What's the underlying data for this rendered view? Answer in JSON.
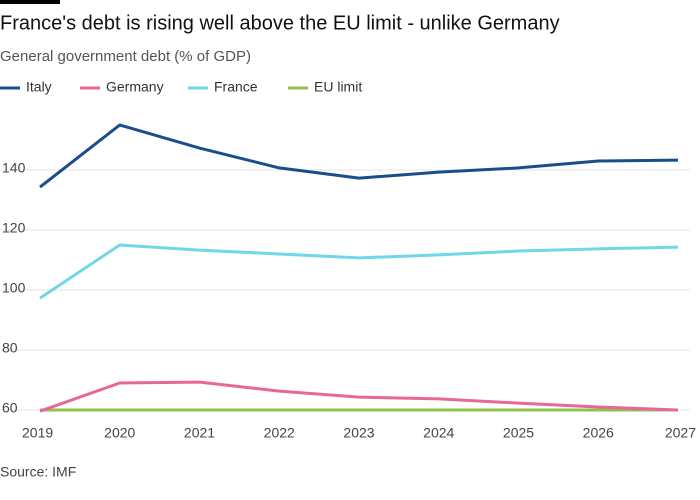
{
  "chart_data": {
    "type": "line",
    "title": "France's debt is rising well above the EU limit - unlike Germany",
    "subtitle": "General government debt (% of GDP)",
    "source": "Source: IMF",
    "categories": [
      "2019",
      "2020",
      "2021",
      "2022",
      "2023",
      "2024",
      "2025",
      "2026",
      "2027"
    ],
    "series": [
      {
        "name": "Italy",
        "color": "#1a4e8a",
        "values": [
          134.3,
          155,
          147.3,
          140.7,
          137.3,
          139.3,
          140.7,
          143,
          143.3
        ]
      },
      {
        "name": "Germany",
        "color": "#e8679a",
        "values": [
          59.6,
          69,
          69.3,
          66.3,
          64.3,
          63.7,
          62.3,
          61,
          60
        ]
      },
      {
        "name": "France",
        "color": "#6fd8e8",
        "values": [
          97.3,
          115,
          113.3,
          112,
          110.7,
          111.7,
          113,
          113.7,
          114.3
        ]
      },
      {
        "name": "EU limit",
        "color": "#8fc04a",
        "values": [
          60,
          60,
          60,
          60,
          60,
          60,
          60,
          60,
          60
        ]
      }
    ],
    "ylim": [
      60,
      162
    ],
    "yticks": [
      60,
      80,
      100,
      120,
      140
    ],
    "grid": true
  }
}
